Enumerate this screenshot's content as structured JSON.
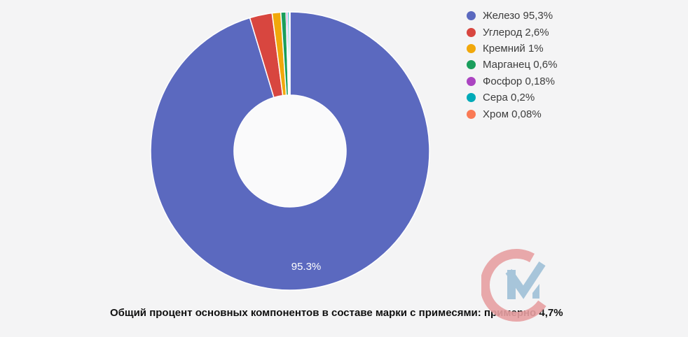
{
  "page": {
    "background": "#f4f4f5"
  },
  "chart_data": {
    "type": "pie",
    "subtype": "donut",
    "title": "",
    "categories": [
      "Железо",
      "Углерод",
      "Кремний",
      "Марганец",
      "Фосфор",
      "Сера",
      "Хром"
    ],
    "values": [
      95.3,
      2.6,
      1,
      0.6,
      0.18,
      0.2,
      0.08
    ],
    "colors": [
      "#5b69bf",
      "#d8463f",
      "#f1a80b",
      "#1a9e5c",
      "#ab44c1",
      "#00aab8",
      "#fa7a55"
    ],
    "slice_border_color": "#ffffff",
    "inner_radius_ratio": 0.4,
    "hole_color": "#fafafb",
    "start_angle": "12-o-clock, clockwise",
    "legend": {
      "position": "right",
      "labels": [
        "Железо 95,3%",
        "Углерод 2,6%",
        "Кремний 1%",
        "Марганец 0,6%",
        "Фосфор 0,18%",
        "Сера 0,2%",
        "Хром 0,08%"
      ]
    },
    "data_labels": [
      {
        "slice": "Железо",
        "text": "95.3%"
      }
    ]
  },
  "caption": "Общий процент основных компонентов в составе марки с примесями: примерно 4,7%",
  "watermark": {
    "name": "cm-logo",
    "c_color": "#e7a0a2",
    "m_color": "#9fc1d8"
  }
}
